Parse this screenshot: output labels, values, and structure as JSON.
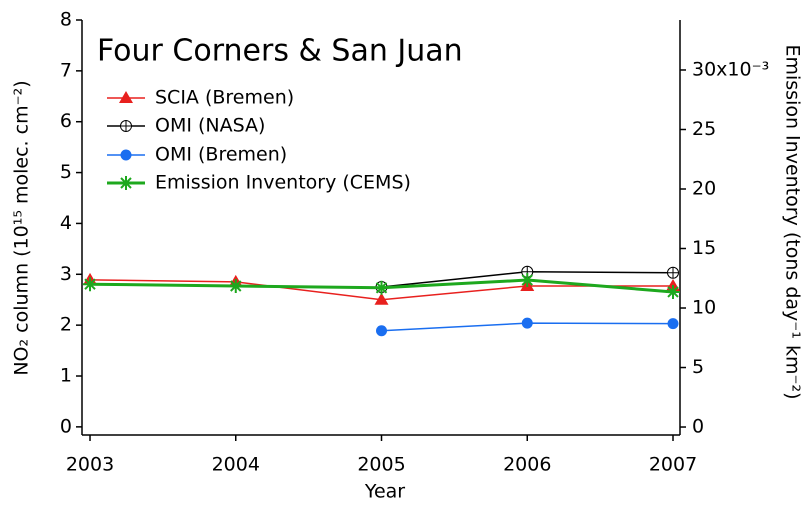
{
  "chart_data": {
    "type": "line",
    "title": "Four Corners & San Juan",
    "x_label": "Year",
    "y_label": "NO₂ column (10¹⁵ molec. cm⁻²)",
    "y2_label": "Emission Inventory (tons day⁻¹ km⁻²)",
    "x": [
      2003,
      2004,
      2005,
      2006,
      2007
    ],
    "xlim": [
      2002.945,
      2007.048
    ],
    "xticks": [
      2003,
      2004,
      2005,
      2006,
      2007
    ],
    "ylim": [
      -0.16,
      8
    ],
    "yticks": [
      0,
      1,
      2,
      3,
      4,
      5,
      6,
      7,
      8
    ],
    "y2lim": [
      -0.67,
      34.2
    ],
    "y2ticks": [
      0,
      5,
      10,
      15,
      20,
      25,
      {
        "value": 30,
        "label": "30x10⁻³"
      }
    ],
    "series": [
      {
        "name": "SCIA (Bremen)",
        "color": "#e8201e",
        "marker": "triangle",
        "values": [
          2.89,
          2.85,
          2.5,
          2.77,
          2.77
        ]
      },
      {
        "name": "OMI (NASA)",
        "color": "#000000",
        "marker": "circle-plus",
        "values": [
          null,
          null,
          2.75,
          3.05,
          3.03
        ]
      },
      {
        "name": "OMI (Bremen)",
        "color": "#1a6ef0",
        "marker": "circle",
        "values": [
          null,
          null,
          1.89,
          2.04,
          2.03
        ]
      },
      {
        "name": "Emission Inventory (CEMS)",
        "color": "#1ea81e",
        "marker": "asterisk",
        "axis": "y2",
        "values": [
          12.0,
          11.85,
          11.7,
          12.35,
          11.35
        ]
      }
    ]
  }
}
